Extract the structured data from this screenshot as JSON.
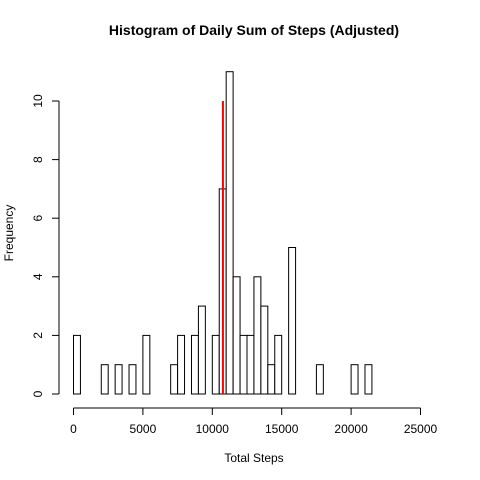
{
  "chart_data": {
    "type": "bar",
    "title": "Histogram of Daily Sum of Steps (Adjusted)",
    "xlabel": "Total Steps",
    "ylabel": "Frequency",
    "bin_width": 500,
    "bins_start": 0,
    "bins_end": 26000,
    "counts": [
      2,
      0,
      0,
      0,
      1,
      0,
      1,
      0,
      1,
      0,
      2,
      0,
      0,
      0,
      1,
      2,
      0,
      2,
      3,
      0,
      2,
      7,
      11,
      4,
      2,
      2,
      4,
      3,
      1,
      2,
      0,
      5,
      0,
      0,
      0,
      1,
      0,
      0,
      0,
      0,
      1,
      0,
      1,
      0,
      0,
      0,
      0,
      0,
      0,
      0,
      0,
      0
    ],
    "xlim": [
      0,
      26000
    ],
    "ylim": [
      0,
      11
    ],
    "x_ticks": [
      0,
      5000,
      10000,
      15000,
      20000,
      25000
    ],
    "y_ticks": [
      0,
      2,
      4,
      6,
      8,
      10
    ],
    "mean_line": {
      "x": 10766,
      "y_top": 10,
      "color": "#ff0000"
    },
    "bar_fill": "#ffffff",
    "bar_stroke": "#000000",
    "grid": false
  }
}
